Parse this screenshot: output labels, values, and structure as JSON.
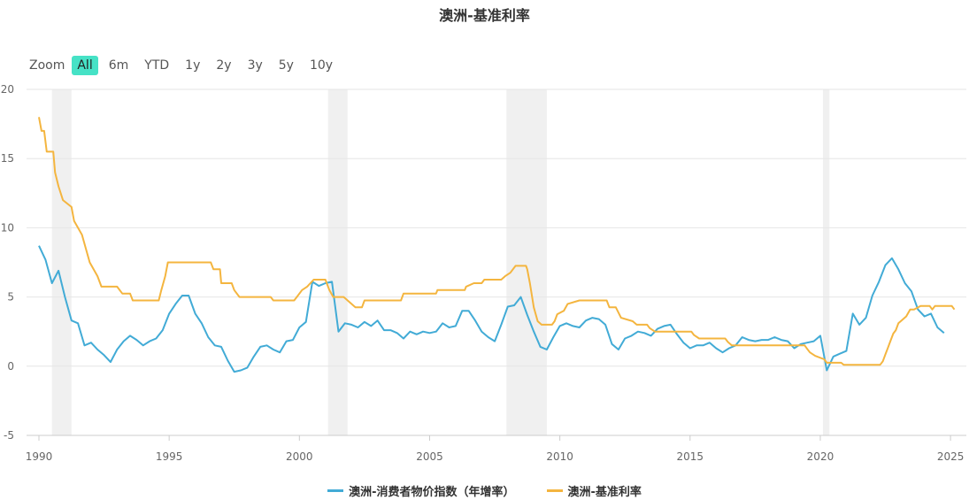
{
  "title": "澳洲-基准利率",
  "zoom": {
    "label": "Zoom",
    "buttons": [
      "All",
      "6m",
      "YTD",
      "1y",
      "2y",
      "3y",
      "5y",
      "10y"
    ],
    "active": "All"
  },
  "colors": {
    "cpi": "#42abd6",
    "rate": "#f4b53f",
    "recession": "#f0f0f0",
    "grid": "#e6e6e6"
  },
  "chart_data": {
    "type": "line",
    "title": "澳洲-基准利率",
    "xlim": [
      1990,
      2025.2
    ],
    "ylim": [
      -5,
      20
    ],
    "x_ticks": [
      1990,
      1995,
      2000,
      2005,
      2010,
      2015,
      2020,
      2025
    ],
    "y_ticks": [
      -5,
      0,
      5,
      10,
      15,
      20
    ],
    "grid": true,
    "legend_position": "bottom-center",
    "shaded_periods": [
      [
        1990.5,
        1991.25
      ],
      [
        2001.1,
        2001.85
      ],
      [
        2007.95,
        2009.5
      ],
      [
        2020.1,
        2020.35
      ]
    ],
    "series": [
      {
        "name": "澳洲-消费者物价指数（年增率）",
        "color": "#42abd6",
        "points": [
          [
            1990.0,
            8.7
          ],
          [
            1990.25,
            7.7
          ],
          [
            1990.5,
            6.0
          ],
          [
            1990.75,
            6.9
          ],
          [
            1991.0,
            5.0
          ],
          [
            1991.25,
            3.3
          ],
          [
            1991.5,
            3.1
          ],
          [
            1991.75,
            1.5
          ],
          [
            1992.0,
            1.7
          ],
          [
            1992.25,
            1.2
          ],
          [
            1992.5,
            0.8
          ],
          [
            1992.75,
            0.3
          ],
          [
            1993.0,
            1.2
          ],
          [
            1993.25,
            1.8
          ],
          [
            1993.5,
            2.2
          ],
          [
            1993.75,
            1.9
          ],
          [
            1994.0,
            1.5
          ],
          [
            1994.25,
            1.8
          ],
          [
            1994.5,
            2.0
          ],
          [
            1994.75,
            2.6
          ],
          [
            1995.0,
            3.8
          ],
          [
            1995.25,
            4.5
          ],
          [
            1995.5,
            5.1
          ],
          [
            1995.75,
            5.1
          ],
          [
            1996.0,
            3.8
          ],
          [
            1996.25,
            3.1
          ],
          [
            1996.5,
            2.1
          ],
          [
            1996.75,
            1.5
          ],
          [
            1997.0,
            1.4
          ],
          [
            1997.25,
            0.4
          ],
          [
            1997.5,
            -0.4
          ],
          [
            1997.75,
            -0.3
          ],
          [
            1998.0,
            -0.1
          ],
          [
            1998.25,
            0.7
          ],
          [
            1998.5,
            1.4
          ],
          [
            1998.75,
            1.5
          ],
          [
            1999.0,
            1.2
          ],
          [
            1999.25,
            1.0
          ],
          [
            1999.5,
            1.8
          ],
          [
            1999.75,
            1.9
          ],
          [
            2000.0,
            2.8
          ],
          [
            2000.25,
            3.2
          ],
          [
            2000.5,
            6.1
          ],
          [
            2000.75,
            5.8
          ],
          [
            2001.0,
            6.0
          ],
          [
            2001.25,
            6.1
          ],
          [
            2001.5,
            2.5
          ],
          [
            2001.75,
            3.1
          ],
          [
            2002.0,
            3.0
          ],
          [
            2002.25,
            2.8
          ],
          [
            2002.5,
            3.2
          ],
          [
            2002.75,
            2.9
          ],
          [
            2003.0,
            3.3
          ],
          [
            2003.25,
            2.6
          ],
          [
            2003.5,
            2.6
          ],
          [
            2003.75,
            2.4
          ],
          [
            2004.0,
            2.0
          ],
          [
            2004.25,
            2.5
          ],
          [
            2004.5,
            2.3
          ],
          [
            2004.75,
            2.5
          ],
          [
            2005.0,
            2.4
          ],
          [
            2005.25,
            2.5
          ],
          [
            2005.5,
            3.1
          ],
          [
            2005.75,
            2.8
          ],
          [
            2006.0,
            2.9
          ],
          [
            2006.25,
            4.0
          ],
          [
            2006.5,
            4.0
          ],
          [
            2006.75,
            3.3
          ],
          [
            2007.0,
            2.5
          ],
          [
            2007.25,
            2.1
          ],
          [
            2007.5,
            1.8
          ],
          [
            2007.75,
            3.0
          ],
          [
            2008.0,
            4.3
          ],
          [
            2008.25,
            4.4
          ],
          [
            2008.5,
            5.0
          ],
          [
            2008.75,
            3.7
          ],
          [
            2009.0,
            2.5
          ],
          [
            2009.25,
            1.4
          ],
          [
            2009.5,
            1.2
          ],
          [
            2009.75,
            2.1
          ],
          [
            2010.0,
            2.9
          ],
          [
            2010.25,
            3.1
          ],
          [
            2010.5,
            2.9
          ],
          [
            2010.75,
            2.8
          ],
          [
            2011.0,
            3.3
          ],
          [
            2011.25,
            3.5
          ],
          [
            2011.5,
            3.4
          ],
          [
            2011.75,
            3.0
          ],
          [
            2012.0,
            1.6
          ],
          [
            2012.25,
            1.2
          ],
          [
            2012.5,
            2.0
          ],
          [
            2012.75,
            2.2
          ],
          [
            2013.0,
            2.5
          ],
          [
            2013.25,
            2.4
          ],
          [
            2013.5,
            2.2
          ],
          [
            2013.75,
            2.7
          ],
          [
            2014.0,
            2.9
          ],
          [
            2014.25,
            3.0
          ],
          [
            2014.5,
            2.3
          ],
          [
            2014.75,
            1.7
          ],
          [
            2015.0,
            1.3
          ],
          [
            2015.25,
            1.5
          ],
          [
            2015.5,
            1.5
          ],
          [
            2015.75,
            1.7
          ],
          [
            2016.0,
            1.3
          ],
          [
            2016.25,
            1.0
          ],
          [
            2016.5,
            1.3
          ],
          [
            2016.75,
            1.5
          ],
          [
            2017.0,
            2.1
          ],
          [
            2017.25,
            1.9
          ],
          [
            2017.5,
            1.8
          ],
          [
            2017.75,
            1.9
          ],
          [
            2018.0,
            1.9
          ],
          [
            2018.25,
            2.1
          ],
          [
            2018.5,
            1.9
          ],
          [
            2018.75,
            1.8
          ],
          [
            2019.0,
            1.3
          ],
          [
            2019.25,
            1.6
          ],
          [
            2019.5,
            1.7
          ],
          [
            2019.75,
            1.8
          ],
          [
            2020.0,
            2.2
          ],
          [
            2020.25,
            -0.3
          ],
          [
            2020.5,
            0.7
          ],
          [
            2020.75,
            0.9
          ],
          [
            2021.0,
            1.1
          ],
          [
            2021.25,
            3.8
          ],
          [
            2021.5,
            3.0
          ],
          [
            2021.75,
            3.5
          ],
          [
            2022.0,
            5.1
          ],
          [
            2022.25,
            6.1
          ],
          [
            2022.5,
            7.3
          ],
          [
            2022.75,
            7.8
          ],
          [
            2023.0,
            7.0
          ],
          [
            2023.25,
            6.0
          ],
          [
            2023.5,
            5.4
          ],
          [
            2023.75,
            4.1
          ],
          [
            2024.0,
            3.6
          ],
          [
            2024.25,
            3.8
          ],
          [
            2024.5,
            2.8
          ],
          [
            2024.75,
            2.4
          ]
        ]
      },
      {
        "name": "澳洲-基准利率",
        "color": "#f4b53f",
        "points": [
          [
            1990.0,
            18.0
          ],
          [
            1990.1,
            17.0
          ],
          [
            1990.2,
            17.0
          ],
          [
            1990.3,
            15.5
          ],
          [
            1990.55,
            15.5
          ],
          [
            1990.62,
            14.0
          ],
          [
            1990.75,
            13.0
          ],
          [
            1990.92,
            12.0
          ],
          [
            1991.25,
            11.5
          ],
          [
            1991.35,
            10.5
          ],
          [
            1991.65,
            9.5
          ],
          [
            1991.8,
            8.5
          ],
          [
            1991.95,
            7.5
          ],
          [
            1992.25,
            6.5
          ],
          [
            1992.4,
            5.75
          ],
          [
            1993.0,
            5.75
          ],
          [
            1993.2,
            5.25
          ],
          [
            1993.5,
            5.25
          ],
          [
            1993.6,
            4.75
          ],
          [
            1994.6,
            4.75
          ],
          [
            1994.7,
            5.5
          ],
          [
            1994.85,
            6.5
          ],
          [
            1994.95,
            7.5
          ],
          [
            1996.6,
            7.5
          ],
          [
            1996.7,
            7.0
          ],
          [
            1996.95,
            7.0
          ],
          [
            1997.0,
            6.0
          ],
          [
            1997.4,
            6.0
          ],
          [
            1997.5,
            5.5
          ],
          [
            1997.7,
            5.0
          ],
          [
            1998.9,
            5.0
          ],
          [
            1999.0,
            4.75
          ],
          [
            1999.8,
            4.75
          ],
          [
            1999.9,
            5.0
          ],
          [
            2000.1,
            5.5
          ],
          [
            2000.3,
            5.75
          ],
          [
            2000.55,
            6.25
          ],
          [
            2001.0,
            6.25
          ],
          [
            2001.15,
            5.5
          ],
          [
            2001.3,
            5.0
          ],
          [
            2001.7,
            5.0
          ],
          [
            2001.85,
            4.75
          ],
          [
            2002.0,
            4.5
          ],
          [
            2002.15,
            4.25
          ],
          [
            2002.4,
            4.25
          ],
          [
            2002.5,
            4.75
          ],
          [
            2003.9,
            4.75
          ],
          [
            2004.0,
            5.25
          ],
          [
            2005.25,
            5.25
          ],
          [
            2005.3,
            5.5
          ],
          [
            2006.35,
            5.5
          ],
          [
            2006.4,
            5.75
          ],
          [
            2006.7,
            6.0
          ],
          [
            2007.0,
            6.0
          ],
          [
            2007.1,
            6.25
          ],
          [
            2007.75,
            6.25
          ],
          [
            2007.9,
            6.5
          ],
          [
            2008.1,
            6.75
          ],
          [
            2008.3,
            7.25
          ],
          [
            2008.7,
            7.25
          ],
          [
            2008.75,
            7.0
          ],
          [
            2008.85,
            6.0
          ],
          [
            2009.0,
            4.25
          ],
          [
            2009.15,
            3.25
          ],
          [
            2009.3,
            3.0
          ],
          [
            2009.7,
            3.0
          ],
          [
            2009.8,
            3.25
          ],
          [
            2009.9,
            3.75
          ],
          [
            2010.15,
            4.0
          ],
          [
            2010.3,
            4.5
          ],
          [
            2010.75,
            4.75
          ],
          [
            2011.8,
            4.75
          ],
          [
            2011.9,
            4.25
          ],
          [
            2012.15,
            4.25
          ],
          [
            2012.35,
            3.5
          ],
          [
            2012.8,
            3.25
          ],
          [
            2012.95,
            3.0
          ],
          [
            2013.35,
            3.0
          ],
          [
            2013.45,
            2.75
          ],
          [
            2013.65,
            2.5
          ],
          [
            2015.05,
            2.5
          ],
          [
            2015.15,
            2.25
          ],
          [
            2015.35,
            2.0
          ],
          [
            2016.35,
            2.0
          ],
          [
            2016.45,
            1.75
          ],
          [
            2016.6,
            1.5
          ],
          [
            2019.4,
            1.5
          ],
          [
            2019.5,
            1.25
          ],
          [
            2019.6,
            1.0
          ],
          [
            2019.8,
            0.75
          ],
          [
            2020.15,
            0.5
          ],
          [
            2020.25,
            0.25
          ],
          [
            2020.8,
            0.25
          ],
          [
            2020.9,
            0.1
          ],
          [
            2022.3,
            0.1
          ],
          [
            2022.4,
            0.35
          ],
          [
            2022.5,
            0.85
          ],
          [
            2022.6,
            1.35
          ],
          [
            2022.7,
            1.85
          ],
          [
            2022.8,
            2.35
          ],
          [
            2022.9,
            2.6
          ],
          [
            2023.0,
            3.1
          ],
          [
            2023.15,
            3.35
          ],
          [
            2023.3,
            3.6
          ],
          [
            2023.45,
            4.1
          ],
          [
            2023.6,
            4.1
          ],
          [
            2023.85,
            4.35
          ],
          [
            2024.05,
            4.35
          ],
          [
            2024.2,
            4.35
          ],
          [
            2024.3,
            4.1
          ],
          [
            2024.4,
            4.35
          ],
          [
            2025.05,
            4.35
          ],
          [
            2025.15,
            4.1
          ]
        ]
      }
    ]
  }
}
